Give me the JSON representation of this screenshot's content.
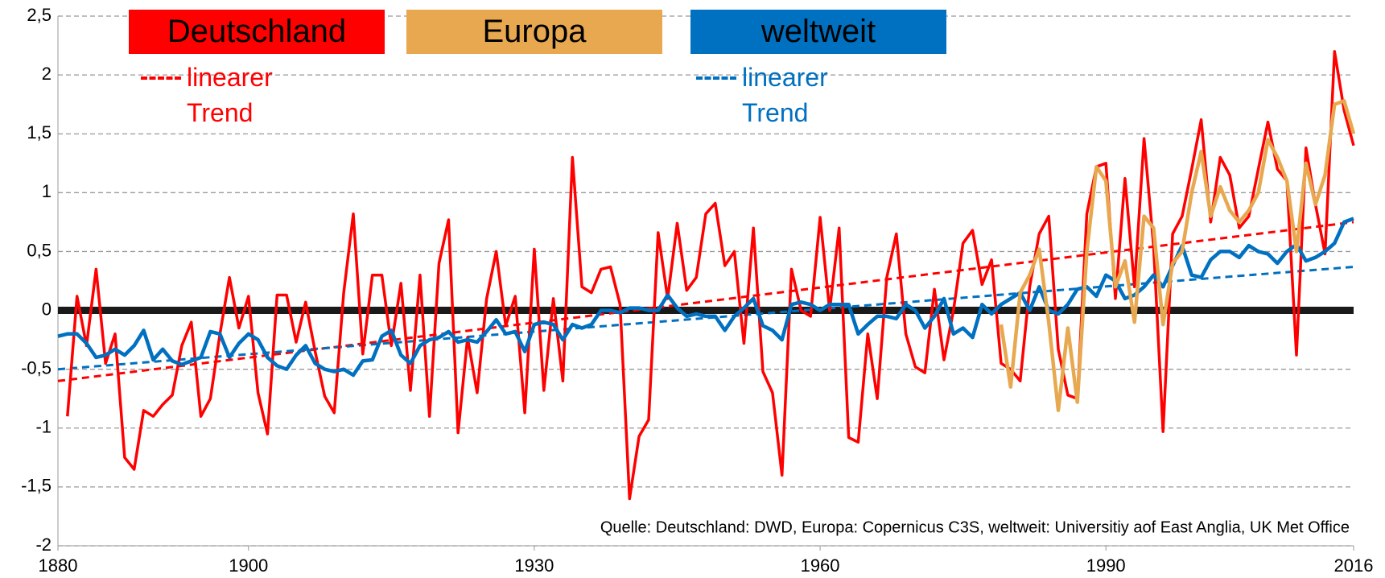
{
  "chart_data": {
    "type": "line",
    "annotation": "Quelle: Deutschland: DWD, Europa: Copernicus C3S, weltweit: Universitiy aof East Anglia, UK Met Office",
    "x": [
      1880,
      1881,
      1882,
      1883,
      1884,
      1885,
      1886,
      1887,
      1888,
      1889,
      1890,
      1891,
      1892,
      1893,
      1894,
      1895,
      1896,
      1897,
      1898,
      1899,
      1900,
      1901,
      1902,
      1903,
      1904,
      1905,
      1906,
      1907,
      1908,
      1909,
      1910,
      1911,
      1912,
      1913,
      1914,
      1915,
      1916,
      1917,
      1918,
      1919,
      1920,
      1921,
      1922,
      1923,
      1924,
      1925,
      1926,
      1927,
      1928,
      1929,
      1930,
      1931,
      1932,
      1933,
      1934,
      1935,
      1936,
      1937,
      1938,
      1939,
      1940,
      1941,
      1942,
      1943,
      1944,
      1945,
      1946,
      1947,
      1948,
      1949,
      1950,
      1951,
      1952,
      1953,
      1954,
      1955,
      1956,
      1957,
      1958,
      1959,
      1960,
      1961,
      1962,
      1963,
      1964,
      1965,
      1966,
      1967,
      1968,
      1969,
      1970,
      1971,
      1972,
      1973,
      1974,
      1975,
      1976,
      1977,
      1978,
      1979,
      1980,
      1981,
      1982,
      1983,
      1984,
      1985,
      1986,
      1987,
      1988,
      1989,
      1990,
      1991,
      1992,
      1993,
      1994,
      1995,
      1996,
      1997,
      1998,
      1999,
      2000,
      2001,
      2002,
      2003,
      2004,
      2005,
      2006,
      2007,
      2008,
      2009,
      2010,
      2011,
      2012,
      2013,
      2014,
      2015,
      2016
    ],
    "series": [
      {
        "name": "Deutschland",
        "color": "#ff0000",
        "values": [
          null,
          -0.9,
          0.12,
          -0.3,
          0.35,
          -0.45,
          -0.2,
          -1.25,
          -1.35,
          -0.85,
          -0.9,
          -0.8,
          -0.72,
          -0.3,
          -0.1,
          -0.9,
          -0.75,
          -0.2,
          0.28,
          -0.15,
          0.12,
          -0.7,
          -1.05,
          0.13,
          0.13,
          -0.27,
          0.07,
          -0.35,
          -0.73,
          -0.87,
          0.15,
          0.82,
          -0.37,
          0.3,
          0.3,
          -0.3,
          0.23,
          -0.68,
          0.3,
          -0.9,
          0.4,
          0.77,
          -1.04,
          -0.23,
          -0.7,
          0.1,
          0.5,
          -0.13,
          0.12,
          -0.87,
          0.52,
          -0.68,
          0.1,
          -0.6,
          1.3,
          0.2,
          0.15,
          0.35,
          0.37,
          0.05,
          -1.6,
          -1.07,
          -0.93,
          0.66,
          0.1,
          0.74,
          0.17,
          0.28,
          0.82,
          0.91,
          0.38,
          0.5,
          -0.28,
          0.7,
          -0.52,
          -0.7,
          -1.4,
          0.35,
          0.0,
          -0.05,
          0.79,
          0.0,
          0.7,
          -1.08,
          -1.12,
          -0.2,
          -0.75,
          0.28,
          0.65,
          -0.2,
          -0.48,
          -0.53,
          0.18,
          -0.42,
          0.0,
          0.57,
          0.68,
          0.22,
          0.43,
          -0.45,
          -0.5,
          -0.6,
          0.2,
          0.65,
          0.8,
          -0.33,
          -0.72,
          -0.75,
          0.82,
          1.22,
          1.25,
          0.1,
          1.12,
          0.2,
          1.46,
          0.55,
          -1.03,
          0.65,
          0.8,
          1.2,
          1.62,
          0.75,
          1.3,
          1.15,
          0.7,
          0.8,
          1.2,
          1.6,
          1.2,
          1.1,
          -0.38,
          1.38,
          0.9,
          0.48,
          2.2,
          1.7,
          1.4
        ]
      },
      {
        "name": "Europa",
        "color": "#e8a850",
        "values": [
          null,
          null,
          null,
          null,
          null,
          null,
          null,
          null,
          null,
          null,
          null,
          null,
          null,
          null,
          null,
          null,
          null,
          null,
          null,
          null,
          null,
          null,
          null,
          null,
          null,
          null,
          null,
          null,
          null,
          null,
          null,
          null,
          null,
          null,
          null,
          null,
          null,
          null,
          null,
          null,
          null,
          null,
          null,
          null,
          null,
          null,
          null,
          null,
          null,
          null,
          null,
          null,
          null,
          null,
          null,
          null,
          null,
          null,
          null,
          null,
          null,
          null,
          null,
          null,
          null,
          null,
          null,
          null,
          null,
          null,
          null,
          null,
          null,
          null,
          null,
          null,
          null,
          null,
          null,
          null,
          null,
          null,
          null,
          null,
          null,
          null,
          null,
          null,
          null,
          null,
          null,
          null,
          null,
          null,
          null,
          null,
          null,
          null,
          null,
          -0.12,
          -0.65,
          0.15,
          0.3,
          0.52,
          -0.1,
          -0.85,
          -0.15,
          -0.78,
          0.5,
          1.22,
          1.1,
          0.2,
          0.42,
          -0.1,
          0.8,
          0.7,
          -0.12,
          0.4,
          0.5,
          1.0,
          1.35,
          0.8,
          1.05,
          0.85,
          0.75,
          0.85,
          1.0,
          1.45,
          1.3,
          1.1,
          0.5,
          1.25,
          0.9,
          1.15,
          1.75,
          1.78,
          1.5
        ]
      },
      {
        "name": "weltweit",
        "color": "#0070c0",
        "values": [
          -0.22,
          -0.2,
          -0.2,
          -0.28,
          -0.4,
          -0.38,
          -0.33,
          -0.38,
          -0.3,
          -0.17,
          -0.42,
          -0.33,
          -0.43,
          -0.46,
          -0.43,
          -0.4,
          -0.18,
          -0.2,
          -0.4,
          -0.28,
          -0.2,
          -0.25,
          -0.4,
          -0.47,
          -0.5,
          -0.38,
          -0.3,
          -0.45,
          -0.5,
          -0.52,
          -0.5,
          -0.55,
          -0.43,
          -0.42,
          -0.22,
          -0.17,
          -0.38,
          -0.45,
          -0.3,
          -0.25,
          -0.23,
          -0.18,
          -0.27,
          -0.25,
          -0.27,
          -0.18,
          -0.08,
          -0.2,
          -0.18,
          -0.35,
          -0.12,
          -0.1,
          -0.12,
          -0.25,
          -0.12,
          -0.15,
          -0.12,
          0.0,
          0.0,
          -0.02,
          0.02,
          0.02,
          0.0,
          0.0,
          0.13,
          0.02,
          -0.05,
          -0.03,
          -0.05,
          -0.05,
          -0.17,
          -0.05,
          0.02,
          0.1,
          -0.13,
          -0.17,
          -0.25,
          0.05,
          0.07,
          0.05,
          0.0,
          0.05,
          0.05,
          0.05,
          -0.2,
          -0.12,
          -0.05,
          -0.05,
          -0.07,
          0.05,
          0.0,
          -0.15,
          -0.05,
          0.1,
          -0.2,
          -0.15,
          -0.23,
          0.05,
          -0.03,
          0.05,
          0.1,
          0.15,
          0.0,
          0.2,
          0.0,
          -0.03,
          0.05,
          0.18,
          0.2,
          0.12,
          0.3,
          0.25,
          0.1,
          0.13,
          0.2,
          0.3,
          0.2,
          0.38,
          0.55,
          0.3,
          0.28,
          0.43,
          0.5,
          0.5,
          0.45,
          0.55,
          0.5,
          0.48,
          0.4,
          0.5,
          0.56,
          0.42,
          0.45,
          0.5,
          0.57,
          0.75,
          0.78
        ]
      }
    ],
    "trends": [
      {
        "name": "linearer Trend",
        "color": "#ff0000",
        "x": [
          1880,
          2016
        ],
        "values": [
          -0.6,
          0.75
        ]
      },
      {
        "name": "linearer Trend",
        "color": "#0070c0",
        "x": [
          1880,
          2016
        ],
        "values": [
          -0.5,
          0.37
        ]
      }
    ],
    "xlim": [
      1880,
      2016
    ],
    "xticks": [
      1880,
      1900,
      1930,
      1960,
      1990,
      2016
    ],
    "ylim": [
      -2,
      2.5
    ],
    "yticks": [
      {
        "value": -2,
        "label": "-2"
      },
      {
        "value": -1.5,
        "label": "-1,5"
      },
      {
        "value": -1,
        "label": "-1"
      },
      {
        "value": -0.5,
        "label": "-0,5"
      },
      0,
      {
        "value": 0.5,
        "label": "0,5"
      },
      1,
      {
        "value": 1.5,
        "label": "1,5"
      },
      2,
      {
        "value": 2.5,
        "label": "2,5"
      }
    ],
    "grid": true,
    "zero_line": true
  }
}
